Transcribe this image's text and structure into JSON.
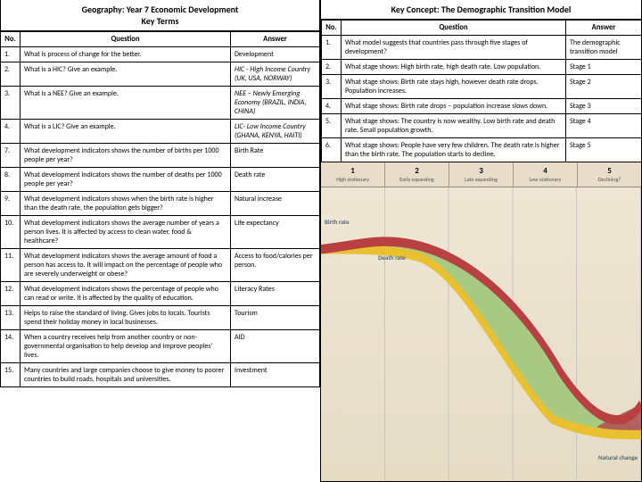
{
  "left": {
    "title": "Geography: Year 7 Economic Development\nKey Terms",
    "headers": [
      "No.",
      "Question",
      "Answer"
    ],
    "rows": [
      {
        "no": "1.",
        "q": "What is process of change for the better.",
        "a": "Development"
      },
      {
        "no": "2.",
        "q": "What is a HIC? Give an example.",
        "a": "HIC - High Income Country (UK, USA, NORWAY)",
        "ai": true
      },
      {
        "no": "3.",
        "q": "What is a NEE? Give an example.",
        "a": "NEE – Newly Emerging Economy (BRAZIL, INDIA, CHINA)",
        "ai": true
      },
      {
        "no": "4.",
        "q": "What is a LIC? Give an example.",
        "a": "LIC- Low Income Country (GHANA, KENYA, HAITI)",
        "ai": true
      },
      {
        "no": "7.",
        "q": "What development indicators shows the number of births per 1000 people per year?",
        "a": "Birth Rate"
      },
      {
        "no": "8.",
        "q": "What development indicators shows the number of deaths per 1000 people per year?",
        "a": "Death rate"
      },
      {
        "no": "9.",
        "q": "What development indicators shows when the birth rate is higher than the death rate, the population gets bigger?",
        "a": "Natural increase"
      },
      {
        "no": "10.",
        "q": "What development indicators shows the average number of years a person lives. It is affected by access to clean water, food & healthcare?",
        "a": "Life expectancy"
      },
      {
        "no": "11.",
        "q": "What development indicators shows the average amount of food a person has access to. It will impact on the percentage of people who are severely underweight or obese?",
        "a": "Access to food/calories per person."
      },
      {
        "no": "12.",
        "q": "What development indicators shows the percentage of people who can read or write. It is affected by the quality of education.",
        "a": "Literacy Rates"
      },
      {
        "no": "13.",
        "q": "Helps to raise the standard of living. Gives jobs to locals. Tourists spend their holiday money in local businesses.",
        "a": "Tourism"
      },
      {
        "no": "14.",
        "q": "When a country receives help from another country or non-governmental organisation to help develop and improve peoples' lives.",
        "a": "AID"
      },
      {
        "no": "15.",
        "q": "Many countries and large companies choose to give money to poorer countries to build roads, hospitals and universities.",
        "a": "Investment"
      }
    ]
  },
  "right": {
    "title": "Key Concept: The Demographic Transition Model",
    "headers": [
      "No.",
      "Question",
      "Answer"
    ],
    "rows": [
      {
        "no": "1.",
        "q": "What model suggests that countries pass through five stages of development?",
        "a": "The demographic transition model"
      },
      {
        "no": "2.",
        "q": "What stage shows: High birth rate, high death rate. Low population.",
        "a": "Stage 1"
      },
      {
        "no": "3.",
        "q": "What stage shows: Birth rate stays high, however death rate drops. Population increases.",
        "a": "Stage 2"
      },
      {
        "no": "4.",
        "q": "What stage shows: Birth rate drops – population increase slows down.",
        "a": "Stage 3"
      },
      {
        "no": "5.",
        "q": "What stage shows: The country is now wealthy. Low birth rate and death rate. Small population growth.",
        "a": "Stage 4"
      },
      {
        "no": "6.",
        "q": "What stage shows: People have very few children. The death rate is higher than the birth rate. The population starts to decline.",
        "a": "Stage 5"
      }
    ]
  },
  "chart": {
    "stages": [
      {
        "n": "1",
        "lbl": "High stationary"
      },
      {
        "n": "2",
        "lbl": "Early expanding"
      },
      {
        "n": "3",
        "lbl": "Late expanding"
      },
      {
        "n": "4",
        "lbl": "Low stationary"
      },
      {
        "n": "5",
        "lbl": "Declining?"
      }
    ],
    "labels": {
      "birth": "Birth rate",
      "death": "Death rate",
      "natchg": "Natural change"
    },
    "colors": {
      "birth": "#e8c030",
      "death": "#b84040",
      "natinc": "#a0c77a",
      "natchg": "#ad5555",
      "bg_top": "#efe6d4",
      "bg_bot": "#e5dcc6"
    }
  }
}
